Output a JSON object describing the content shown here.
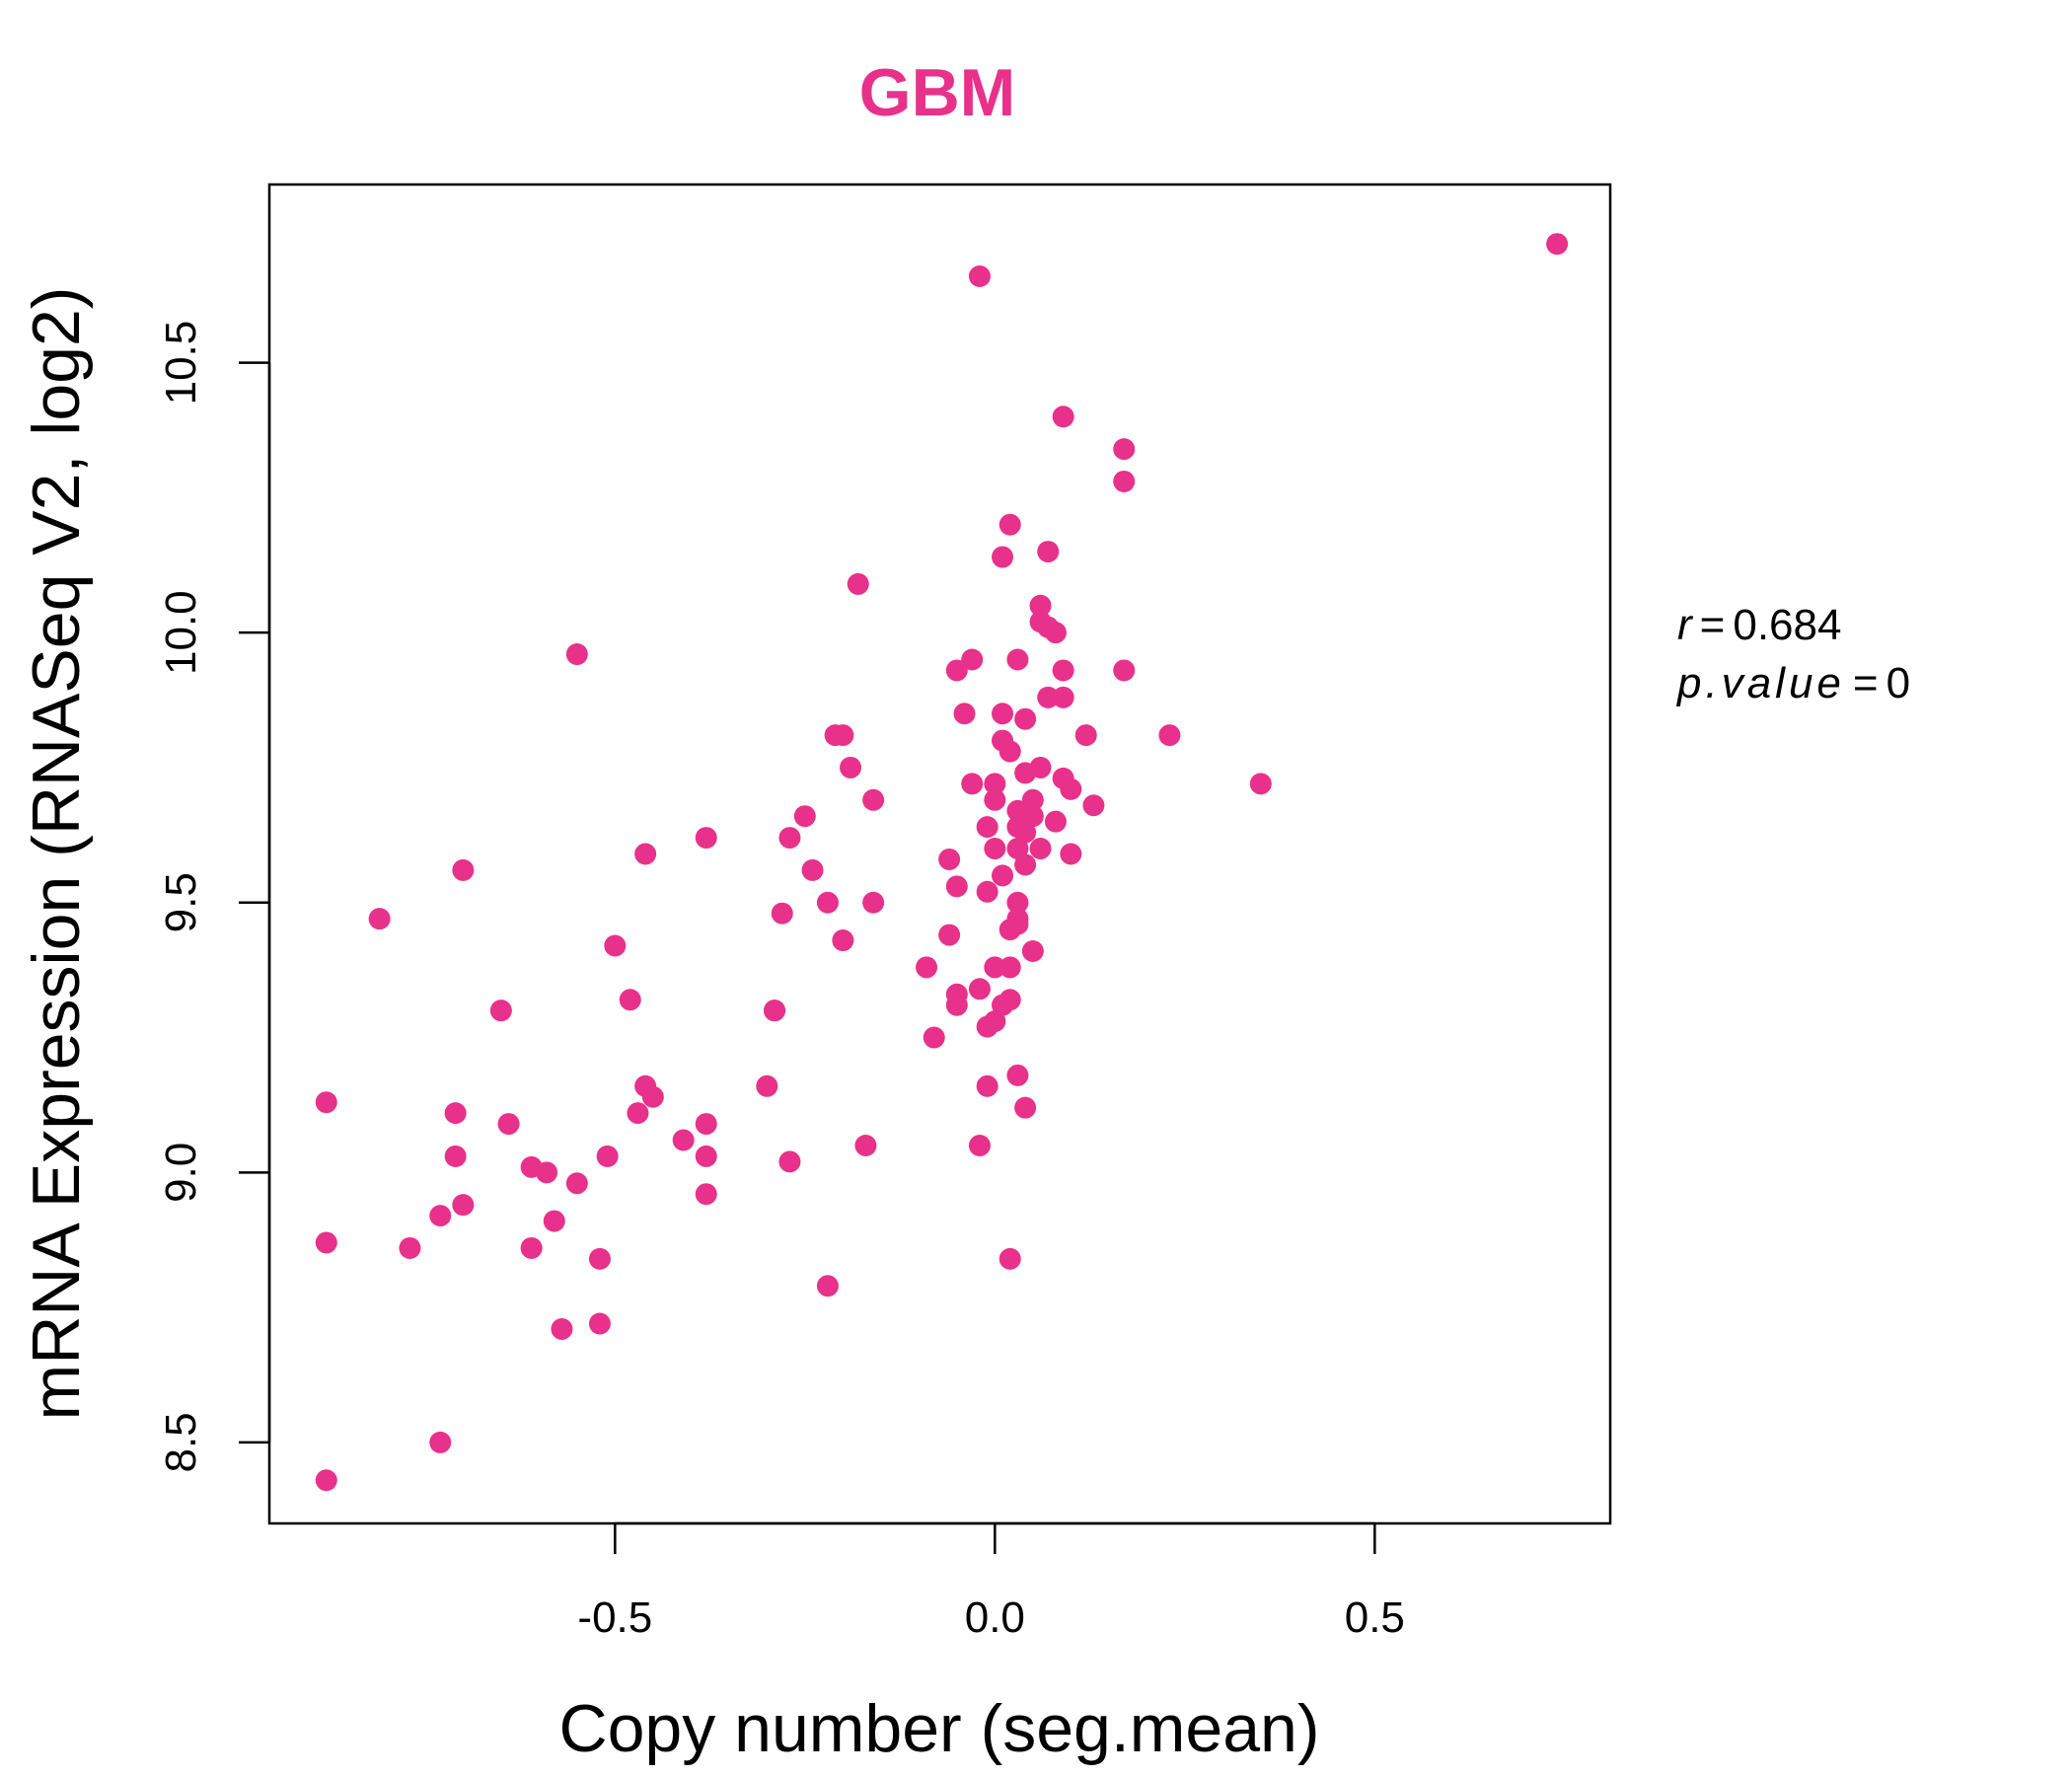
{
  "chart_data": {
    "type": "scatter",
    "title": "GBM",
    "xlabel": "Copy number (seg.mean)",
    "ylabel": "mRNA Expression (RNASeq V2, log2)",
    "xlim": [
      -0.955,
      0.81
    ],
    "ylim": [
      8.35,
      10.83
    ],
    "xticks": [
      -0.5,
      0.0,
      0.5
    ],
    "xtick_labels": [
      "-0.5",
      "0.0",
      "0.5"
    ],
    "yticks": [
      8.5,
      9.0,
      9.5,
      10.0,
      10.5
    ],
    "ytick_labels": [
      "8.5",
      "9.0",
      "9.5",
      "10.0",
      "10.5"
    ],
    "grid": false,
    "point_color": "#E8318A",
    "stats": {
      "r_label": "r",
      "r_value": "0.684",
      "p_label": "p.value",
      "p_value": "0"
    },
    "x": [
      0.74,
      -0.02,
      0.09,
      0.17,
      0.17,
      0.02,
      0.07,
      0.01,
      -0.18,
      0.06,
      0.06,
      0.07,
      0.08,
      0.03,
      0.09,
      0.17,
      -0.55,
      -0.03,
      -0.05,
      0.09,
      0.07,
      -0.04,
      0.01,
      0.04,
      0.23,
      0.12,
      0.01,
      -0.2,
      -0.21,
      -0.19,
      0.02,
      0.06,
      0.04,
      0.0,
      0.35,
      -0.03,
      0.09,
      0.1,
      0.0,
      0.05,
      -0.16,
      0.13,
      0.03,
      0.05,
      0.03,
      -0.01,
      0.08,
      0.04,
      -0.38,
      -0.27,
      -0.25,
      0.06,
      0.03,
      0.0,
      0.1,
      -0.46,
      -0.06,
      0.04,
      -0.24,
      0.01,
      -0.7,
      -0.05,
      -0.01,
      -0.22,
      -0.16,
      0.03,
      -0.28,
      0.03,
      -0.81,
      -0.06,
      0.03,
      0.02,
      -0.5,
      0.05,
      -0.09,
      0.0,
      0.02,
      -0.2,
      -0.02,
      -0.05,
      -0.48,
      0.02,
      -0.29,
      -0.05,
      -0.65,
      0.01,
      -0.29,
      0.0,
      -0.01,
      -0.08,
      0.03,
      -0.46,
      -0.01,
      -0.3,
      -0.88,
      -0.45,
      0.04,
      -0.71,
      -0.47,
      -0.64,
      -0.38,
      -0.41,
      -0.17,
      -0.02,
      -0.71,
      -0.38,
      -0.51,
      -0.27,
      -0.61,
      -0.59,
      -0.55,
      -0.7,
      -0.38,
      -0.73,
      -0.58,
      -0.88,
      -0.77,
      -0.61,
      -0.52,
      0.02,
      -0.22,
      -0.52,
      -0.57,
      -0.73,
      -0.88
    ],
    "y": [
      10.72,
      10.66,
      10.4,
      10.34,
      10.28,
      10.2,
      10.15,
      10.14,
      10.09,
      10.05,
      10.02,
      10.01,
      10.0,
      9.95,
      9.93,
      9.93,
      9.96,
      9.95,
      9.93,
      9.88,
      9.88,
      9.85,
      9.85,
      9.84,
      9.81,
      9.81,
      9.8,
      9.81,
      9.81,
      9.75,
      9.78,
      9.75,
      9.74,
      9.72,
      9.72,
      9.72,
      9.73,
      9.71,
      9.69,
      9.69,
      9.69,
      9.68,
      9.67,
      9.66,
      9.64,
      9.64,
      9.65,
      9.63,
      9.62,
      9.62,
      9.66,
      9.6,
      9.6,
      9.6,
      9.59,
      9.59,
      9.58,
      9.57,
      9.56,
      9.55,
      9.56,
      9.53,
      9.52,
      9.5,
      9.5,
      9.5,
      9.48,
      9.47,
      9.47,
      9.44,
      9.46,
      9.45,
      9.42,
      9.41,
      9.38,
      9.38,
      9.38,
      9.43,
      9.34,
      9.33,
      9.32,
      9.32,
      9.3,
      9.31,
      9.3,
      9.31,
      9.3,
      9.28,
      9.27,
      9.25,
      9.18,
      9.16,
      9.16,
      9.16,
      9.13,
      9.14,
      9.12,
      9.11,
      9.11,
      9.09,
      9.09,
      9.06,
      9.05,
      9.05,
      9.03,
      9.03,
      9.03,
      9.02,
      9.01,
      9.0,
      8.98,
      8.94,
      8.96,
      8.92,
      8.91,
      8.87,
      8.86,
      8.86,
      8.84,
      8.84,
      8.79,
      8.72,
      8.71,
      8.5,
      8.43
    ]
  }
}
